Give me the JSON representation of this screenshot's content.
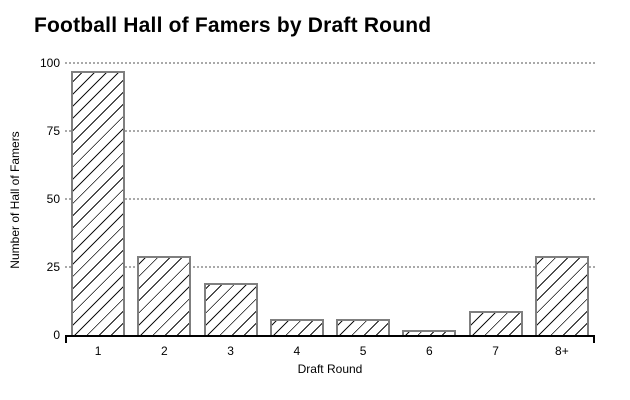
{
  "page": {
    "background": "#ffffff"
  },
  "chart_data": {
    "type": "bar",
    "title": "Football Hall of Famers by Draft Round",
    "xlabel": "Draft Round",
    "ylabel": "Number of Hall of Famers",
    "categories": [
      "1",
      "2",
      "3",
      "4",
      "5",
      "6",
      "7",
      "8+"
    ],
    "values": [
      97,
      29,
      19,
      6,
      6,
      2,
      9,
      29
    ],
    "yticks": [
      0,
      25,
      50,
      75,
      100
    ],
    "ylim": [
      0,
      100
    ],
    "grid": "horizontal-dotted",
    "legend": "none",
    "bar_fill": "#ffffff",
    "bar_hatch": "diagonal-forward-slash",
    "hatch_color": "#141414",
    "bar_border_color": "#7f7f7f",
    "gridline_color": "#a9a9a9",
    "axis_color": "#000000",
    "text_color": "#000000"
  }
}
